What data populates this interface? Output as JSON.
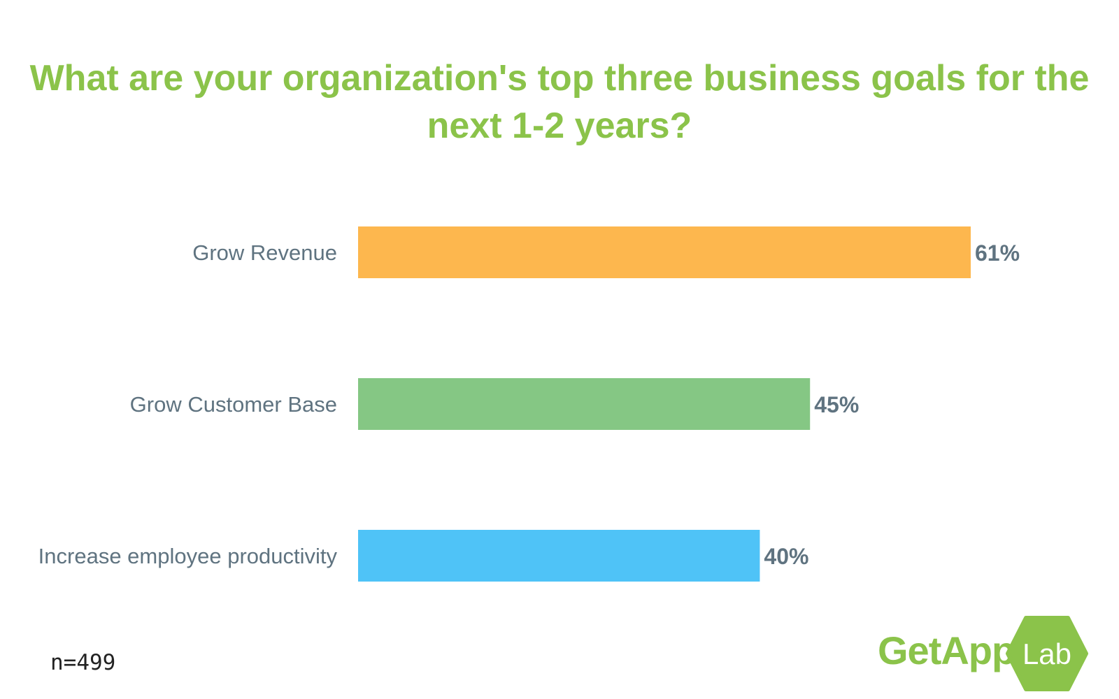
{
  "title_lines": [
    "What are your organization's top three business goals for the",
    "next 1-2 years?"
  ],
  "chart_data": {
    "type": "bar",
    "orientation": "horizontal",
    "categories": [
      "Grow Revenue",
      "Grow Customer Base",
      "Increase employee productivity"
    ],
    "values": [
      61,
      45,
      40
    ],
    "value_labels": [
      "61%",
      "45%",
      "40%"
    ],
    "colors": [
      "#fdb74e",
      "#85c784",
      "#4fc3f7"
    ],
    "xlim": [
      0,
      61
    ],
    "grid": false,
    "legend": "none"
  },
  "footnote": "n=499",
  "brand": {
    "name": "GetApp",
    "registered": "®",
    "badge": "Lab",
    "color": "#8bc34a",
    "icon": "hexagon-badge-icon"
  }
}
